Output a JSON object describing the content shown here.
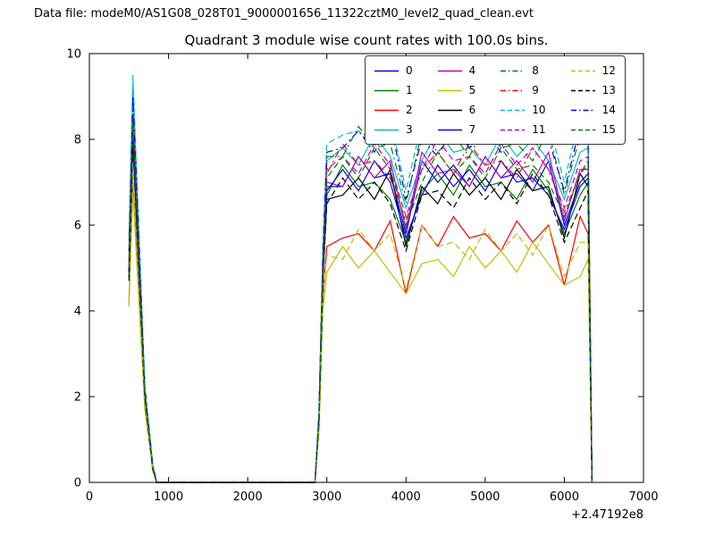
{
  "header": {
    "data_file_label": "Data file: modeM0/AS1G08_028T01_9000001656_11322cztM0_level2_quad_clean.evt"
  },
  "chart_data": {
    "type": "line",
    "title": "Quadrant 3 module wise count rates with 100.0s bins.",
    "xlabel": "",
    "ylabel": "",
    "xlim": [
      0,
      7000
    ],
    "ylim": [
      0,
      10
    ],
    "xticks": [
      0,
      1000,
      2000,
      3000,
      4000,
      5000,
      6000,
      7000
    ],
    "yticks": [
      0,
      2,
      4,
      6,
      8,
      10
    ],
    "x_offset_label": "+2.47192e8",
    "grid": false,
    "legend_position": "upper right",
    "legend_columns": 4,
    "x": [
      500,
      550,
      600,
      700,
      800,
      850,
      2850,
      2900,
      2950,
      3000,
      3200,
      3400,
      3600,
      3800,
      4000,
      4200,
      4400,
      4600,
      4800,
      5000,
      5200,
      5400,
      5600,
      5800,
      6000,
      6200,
      6300,
      6350
    ],
    "series": [
      {
        "name": "0",
        "color": "#0000ff",
        "style": "solid",
        "values": [
          4.9,
          8.2,
          6.2,
          2.0,
          0.3,
          0,
          0,
          1.5,
          5.0,
          6.9,
          6.9,
          7.6,
          7.1,
          7.2,
          5.8,
          7.5,
          7.0,
          7.4,
          6.9,
          7.6,
          7.1,
          7.2,
          6.8,
          7.5,
          6.0,
          7.0,
          7.2,
          0
        ]
      },
      {
        "name": "1",
        "color": "#007f00",
        "style": "solid",
        "values": [
          4.8,
          8.0,
          6.0,
          2.0,
          0.3,
          0,
          0,
          1.5,
          4.9,
          6.7,
          7.4,
          6.9,
          7.0,
          6.6,
          5.6,
          6.8,
          7.2,
          6.7,
          7.4,
          6.9,
          7.0,
          6.6,
          7.3,
          6.8,
          5.8,
          6.7,
          7.0,
          0
        ]
      },
      {
        "name": "2",
        "color": "#ff0000",
        "style": "solid",
        "values": [
          4.2,
          7.0,
          5.3,
          1.8,
          0.3,
          0,
          0,
          1.3,
          4.3,
          5.5,
          5.7,
          5.8,
          5.4,
          6.1,
          4.4,
          6.0,
          5.5,
          6.2,
          5.7,
          5.8,
          5.4,
          6.1,
          5.6,
          6.0,
          4.6,
          6.2,
          5.8,
          0
        ]
      },
      {
        "name": "3",
        "color": "#00bfbf",
        "style": "solid",
        "values": [
          5.6,
          9.3,
          7.0,
          2.2,
          0.4,
          0,
          0,
          1.6,
          5.4,
          7.5,
          7.8,
          7.4,
          8.1,
          7.6,
          6.4,
          7.5,
          8.2,
          7.7,
          7.8,
          7.4,
          8.1,
          7.6,
          8.0,
          7.5,
          6.6,
          7.7,
          7.8,
          0
        ]
      },
      {
        "name": "4",
        "color": "#bf00bf",
        "style": "solid",
        "values": [
          5.0,
          8.4,
          6.3,
          2.0,
          0.3,
          0,
          0,
          1.5,
          5.1,
          7.0,
          6.9,
          7.6,
          7.1,
          7.5,
          5.9,
          7.7,
          7.2,
          7.3,
          6.9,
          7.6,
          7.1,
          7.5,
          7.0,
          7.7,
          6.1,
          7.3,
          7.3,
          0
        ]
      },
      {
        "name": "5",
        "color": "#bfbf00",
        "style": "solid",
        "values": [
          4.1,
          6.8,
          5.1,
          1.7,
          0.3,
          0,
          0,
          1.2,
          4.0,
          4.9,
          5.5,
          5.0,
          5.4,
          4.9,
          4.4,
          5.1,
          5.2,
          4.8,
          5.5,
          5.0,
          5.4,
          4.9,
          5.6,
          5.1,
          4.6,
          4.8,
          5.2,
          0
        ]
      },
      {
        "name": "6",
        "color": "#000000",
        "style": "solid",
        "values": [
          4.8,
          8.0,
          6.0,
          2.0,
          0.3,
          0,
          0,
          1.4,
          4.8,
          6.6,
          6.7,
          7.1,
          6.6,
          7.3,
          5.5,
          6.9,
          6.5,
          7.2,
          6.7,
          7.1,
          6.6,
          7.3,
          6.8,
          6.9,
          5.7,
          7.2,
          6.9,
          0
        ]
      },
      {
        "name": "7",
        "color": "#0000ff",
        "style": "solid",
        "values": [
          4.9,
          8.1,
          6.1,
          2.0,
          0.3,
          0,
          0,
          1.5,
          5.0,
          6.8,
          7.3,
          6.8,
          7.5,
          7.0,
          5.7,
          6.7,
          7.4,
          6.9,
          7.3,
          6.8,
          7.5,
          7.0,
          7.1,
          6.7,
          5.9,
          6.9,
          7.1,
          0
        ]
      },
      {
        "name": "8",
        "color": "#007f00",
        "style": "dashdot",
        "values": [
          5.3,
          8.8,
          6.6,
          2.1,
          0.4,
          0,
          0,
          1.6,
          5.3,
          7.6,
          7.6,
          8.3,
          7.8,
          7.9,
          6.5,
          8.2,
          7.7,
          8.1,
          7.6,
          8.3,
          7.8,
          7.9,
          7.5,
          8.2,
          6.7,
          8.1,
          7.9,
          0
        ]
      },
      {
        "name": "9",
        "color": "#ff0000",
        "style": "dashdot",
        "values": [
          5.1,
          8.5,
          6.4,
          2.1,
          0.3,
          0,
          0,
          1.5,
          5.2,
          7.2,
          7.9,
          7.4,
          7.5,
          7.1,
          6.1,
          7.3,
          7.7,
          7.2,
          7.9,
          7.4,
          7.5,
          7.1,
          7.8,
          7.3,
          6.3,
          7.2,
          7.5,
          0
        ]
      },
      {
        "name": "10",
        "color": "#00bfbf",
        "style": "dashed",
        "values": [
          5.7,
          9.5,
          7.1,
          2.3,
          0.4,
          0,
          0,
          1.7,
          5.5,
          7.9,
          8.1,
          8.2,
          7.8,
          8.5,
          6.8,
          8.4,
          7.9,
          8.6,
          8.1,
          8.2,
          7.8,
          8.5,
          8.0,
          8.4,
          7.0,
          8.6,
          8.2,
          0
        ]
      },
      {
        "name": "11",
        "color": "#bf00bf",
        "style": "dashed",
        "values": [
          5.2,
          8.6,
          6.5,
          2.1,
          0.3,
          0,
          0,
          1.5,
          5.2,
          7.3,
          7.6,
          7.2,
          7.9,
          7.4,
          6.2,
          7.3,
          8.0,
          7.5,
          7.6,
          7.2,
          7.9,
          7.4,
          7.8,
          7.3,
          6.4,
          7.5,
          7.6,
          0
        ]
      },
      {
        "name": "12",
        "color": "#bfbf00",
        "style": "dashed",
        "values": [
          4.3,
          7.2,
          5.4,
          1.8,
          0.3,
          0,
          0,
          1.3,
          4.4,
          5.3,
          5.2,
          5.9,
          5.4,
          5.8,
          4.5,
          6.0,
          5.5,
          5.6,
          5.2,
          5.9,
          5.4,
          5.8,
          5.3,
          6.0,
          4.8,
          5.6,
          5.6,
          0
        ]
      },
      {
        "name": "13",
        "color": "#000000",
        "style": "dashed",
        "values": [
          4.7,
          7.9,
          5.9,
          2.0,
          0.3,
          0,
          0,
          1.4,
          4.7,
          6.5,
          7.1,
          6.6,
          7.0,
          6.5,
          5.4,
          6.7,
          6.8,
          6.4,
          7.1,
          6.6,
          7.0,
          6.5,
          7.2,
          6.7,
          5.6,
          6.4,
          6.8,
          0
        ]
      },
      {
        "name": "14",
        "color": "#0000ff",
        "style": "dashdot",
        "values": [
          5.4,
          9.0,
          6.8,
          2.2,
          0.4,
          0,
          0,
          1.6,
          5.4,
          7.7,
          7.8,
          8.2,
          7.7,
          8.4,
          6.6,
          8.0,
          7.6,
          8.3,
          7.8,
          8.2,
          7.7,
          8.4,
          7.9,
          8.0,
          6.8,
          8.3,
          8.0,
          0
        ]
      },
      {
        "name": "15",
        "color": "#007f00",
        "style": "dashed",
        "values": [
          5.0,
          8.4,
          6.3,
          2.1,
          0.3,
          0,
          0,
          1.5,
          5.1,
          7.1,
          7.6,
          7.1,
          7.8,
          7.3,
          6.0,
          7.0,
          7.7,
          7.2,
          7.6,
          7.1,
          7.8,
          7.3,
          7.4,
          7.0,
          6.2,
          7.2,
          7.4,
          0
        ]
      }
    ]
  },
  "colors": {
    "background": "#ffffff",
    "axes": "#000000"
  }
}
